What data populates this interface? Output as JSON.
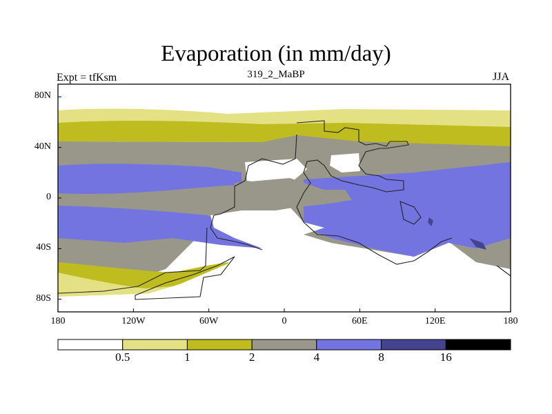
{
  "title": "Evaporation (in mm/day)",
  "left_label": "Expt = tfKsm",
  "center_label": "319_2_MaBP",
  "right_label": "JJA",
  "map": {
    "lon_range": [
      -180,
      180
    ],
    "lat_range": [
      -90,
      90
    ],
    "x_ticks": [
      {
        "lon": -180,
        "label": "180"
      },
      {
        "lon": -120,
        "label": "120W"
      },
      {
        "lon": -60,
        "label": "60W"
      },
      {
        "lon": 0,
        "label": "0"
      },
      {
        "lon": 60,
        "label": "60E"
      },
      {
        "lon": 120,
        "label": "120E"
      },
      {
        "lon": 180,
        "label": "180"
      }
    ],
    "y_ticks": [
      {
        "lat": 80,
        "label": "80N"
      },
      {
        "lat": 40,
        "label": "40N"
      },
      {
        "lat": 0,
        "label": "0"
      },
      {
        "lat": -40,
        "label": "40S"
      },
      {
        "lat": -80,
        "label": "80S"
      }
    ]
  },
  "colorbar": {
    "levels": [
      "0.5",
      "1",
      "2",
      "4",
      "8",
      "16"
    ],
    "colors": [
      "#ffffff",
      "#e3e184",
      "#bfbc20",
      "#98978a",
      "#7474e0",
      "#434390",
      "#000000"
    ]
  }
}
